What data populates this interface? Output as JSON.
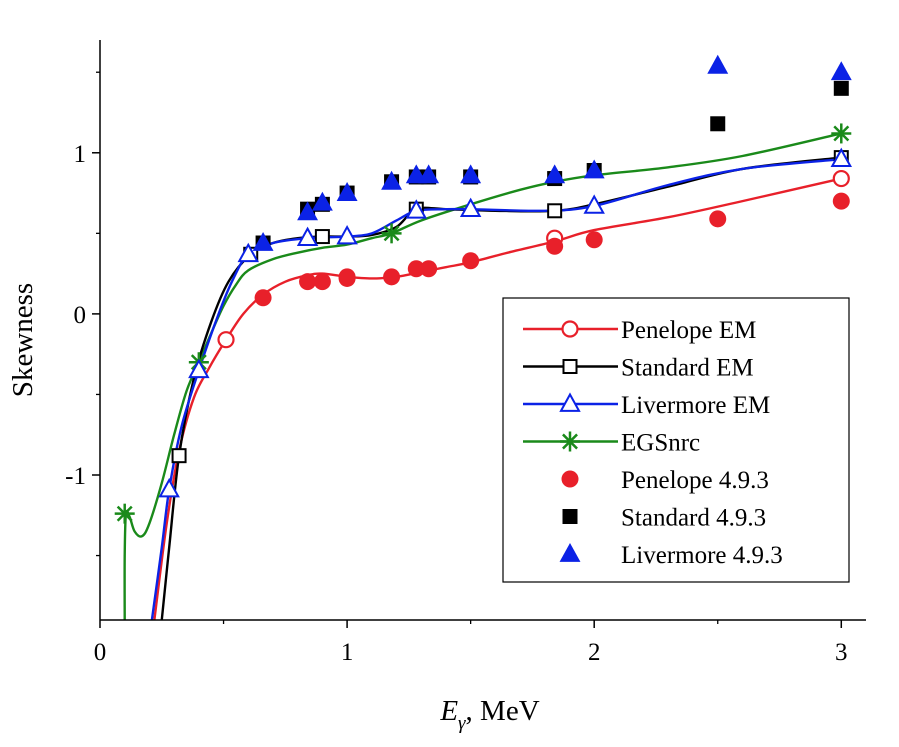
{
  "chart_data": {
    "type": "scatter",
    "title": "",
    "xlabel_main": "E",
    "xlabel_sub": "γ",
    "xlabel_unit": ", MeV",
    "ylabel": "Skewness",
    "xlim": [
      0,
      3.1
    ],
    "ylim": [
      -1.9,
      1.7
    ],
    "x_ticks": [
      0,
      1,
      2,
      3
    ],
    "x_tick_labels": [
      "0",
      "1",
      "2",
      "3"
    ],
    "y_ticks": [
      -1,
      0,
      1
    ],
    "y_tick_labels": [
      "-1",
      "0",
      "1"
    ],
    "grid": false,
    "legend_position": "bottom-right",
    "colors": {
      "red": "#e8202a",
      "black": "#000000",
      "blue": "#0b22e6",
      "green": "#1a8a1a"
    },
    "series": [
      {
        "name": "Penelope EM",
        "style": "line-open-circle",
        "color": "red",
        "points": [
          [
            0.51,
            -0.16
          ],
          [
            1.84,
            0.47
          ],
          [
            3.0,
            0.84
          ]
        ],
        "curve": [
          [
            0.22,
            -1.9
          ],
          [
            0.27,
            -1.3
          ],
          [
            0.32,
            -0.85
          ],
          [
            0.38,
            -0.52
          ],
          [
            0.44,
            -0.34
          ],
          [
            0.51,
            -0.16
          ],
          [
            0.58,
            0.0
          ],
          [
            0.66,
            0.12
          ],
          [
            0.75,
            0.2
          ],
          [
            0.84,
            0.24
          ],
          [
            0.9,
            0.25
          ],
          [
            1.0,
            0.23
          ],
          [
            1.1,
            0.22
          ],
          [
            1.2,
            0.23
          ],
          [
            1.3,
            0.26
          ],
          [
            1.4,
            0.29
          ],
          [
            1.5,
            0.32
          ],
          [
            1.65,
            0.38
          ],
          [
            1.84,
            0.45
          ],
          [
            2.0,
            0.52
          ],
          [
            2.3,
            0.6
          ],
          [
            2.6,
            0.7
          ],
          [
            3.0,
            0.84
          ]
        ]
      },
      {
        "name": "Standard EM",
        "style": "line-open-square",
        "color": "black",
        "points": [
          [
            0.32,
            -0.88
          ],
          [
            0.61,
            0.37
          ],
          [
            0.9,
            0.48
          ],
          [
            1.28,
            0.65
          ],
          [
            1.84,
            0.64
          ],
          [
            3.0,
            0.97
          ]
        ],
        "curve": [
          [
            0.25,
            -1.9
          ],
          [
            0.28,
            -1.45
          ],
          [
            0.32,
            -0.88
          ],
          [
            0.38,
            -0.4
          ],
          [
            0.45,
            -0.05
          ],
          [
            0.52,
            0.2
          ],
          [
            0.61,
            0.37
          ],
          [
            0.7,
            0.44
          ],
          [
            0.8,
            0.47
          ],
          [
            0.9,
            0.48
          ],
          [
            1.0,
            0.48
          ],
          [
            1.1,
            0.49
          ],
          [
            1.2,
            0.54
          ],
          [
            1.28,
            0.65
          ],
          [
            1.4,
            0.65
          ],
          [
            1.6,
            0.64
          ],
          [
            1.84,
            0.64
          ],
          [
            2.0,
            0.68
          ],
          [
            2.3,
            0.79
          ],
          [
            2.6,
            0.9
          ],
          [
            3.0,
            0.97
          ]
        ]
      },
      {
        "name": "Livermore EM",
        "style": "line-open-triangle",
        "color": "blue",
        "points": [
          [
            0.28,
            -1.09
          ],
          [
            0.4,
            -0.35
          ],
          [
            0.6,
            0.37
          ],
          [
            0.84,
            0.47
          ],
          [
            1.0,
            0.48
          ],
          [
            1.28,
            0.64
          ],
          [
            1.5,
            0.65
          ],
          [
            2.0,
            0.67
          ],
          [
            3.0,
            0.96
          ]
        ],
        "curve": [
          [
            0.21,
            -1.9
          ],
          [
            0.25,
            -1.45
          ],
          [
            0.28,
            -1.09
          ],
          [
            0.33,
            -0.7
          ],
          [
            0.4,
            -0.35
          ],
          [
            0.48,
            0.0
          ],
          [
            0.54,
            0.22
          ],
          [
            0.6,
            0.37
          ],
          [
            0.7,
            0.44
          ],
          [
            0.84,
            0.47
          ],
          [
            1.0,
            0.48
          ],
          [
            1.1,
            0.5
          ],
          [
            1.2,
            0.58
          ],
          [
            1.28,
            0.64
          ],
          [
            1.4,
            0.65
          ],
          [
            1.5,
            0.65
          ],
          [
            1.8,
            0.64
          ],
          [
            2.0,
            0.67
          ],
          [
            2.3,
            0.8
          ],
          [
            2.6,
            0.9
          ],
          [
            3.0,
            0.96
          ]
        ]
      },
      {
        "name": "EGSnrc",
        "style": "line-star",
        "color": "green",
        "points": [
          [
            0.1,
            -1.24
          ],
          [
            0.4,
            -0.3
          ],
          [
            1.18,
            0.5
          ],
          [
            3.0,
            1.12
          ]
        ],
        "curve": [
          [
            0.1,
            -1.9
          ],
          [
            0.1,
            -1.5
          ],
          [
            0.105,
            -1.24
          ],
          [
            0.12,
            -1.26
          ],
          [
            0.14,
            -1.35
          ],
          [
            0.17,
            -1.38
          ],
          [
            0.2,
            -1.3
          ],
          [
            0.25,
            -1.05
          ],
          [
            0.3,
            -0.75
          ],
          [
            0.35,
            -0.48
          ],
          [
            0.4,
            -0.3
          ],
          [
            0.45,
            -0.12
          ],
          [
            0.5,
            0.05
          ],
          [
            0.55,
            0.18
          ],
          [
            0.6,
            0.27
          ],
          [
            0.7,
            0.34
          ],
          [
            0.8,
            0.38
          ],
          [
            0.9,
            0.41
          ],
          [
            1.0,
            0.43
          ],
          [
            1.1,
            0.47
          ],
          [
            1.18,
            0.5
          ],
          [
            1.3,
            0.58
          ],
          [
            1.5,
            0.68
          ],
          [
            1.7,
            0.77
          ],
          [
            1.84,
            0.82
          ],
          [
            2.0,
            0.86
          ],
          [
            2.3,
            0.91
          ],
          [
            2.6,
            0.98
          ],
          [
            3.0,
            1.12
          ]
        ]
      },
      {
        "name": "Penelope 4.9.3",
        "style": "filled-circle",
        "color": "red",
        "points": [
          [
            0.66,
            0.1
          ],
          [
            0.84,
            0.2
          ],
          [
            0.9,
            0.2
          ],
          [
            1.0,
            0.22
          ],
          [
            1.0,
            0.23
          ],
          [
            1.18,
            0.23
          ],
          [
            1.28,
            0.28
          ],
          [
            1.33,
            0.28
          ],
          [
            1.5,
            0.33
          ],
          [
            1.84,
            0.42
          ],
          [
            2.0,
            0.46
          ],
          [
            2.5,
            0.59
          ],
          [
            3.0,
            0.7
          ]
        ]
      },
      {
        "name": "Standard 4.9.3",
        "style": "filled-square",
        "color": "black",
        "points": [
          [
            0.66,
            0.44
          ],
          [
            0.84,
            0.65
          ],
          [
            0.9,
            0.68
          ],
          [
            1.0,
            0.75
          ],
          [
            1.18,
            0.82
          ],
          [
            1.28,
            0.85
          ],
          [
            1.33,
            0.85
          ],
          [
            1.5,
            0.85
          ],
          [
            1.84,
            0.84
          ],
          [
            2.0,
            0.89
          ],
          [
            2.5,
            1.18
          ],
          [
            3.0,
            1.4
          ]
        ]
      },
      {
        "name": "Livermore 4.9.3",
        "style": "filled-triangle",
        "color": "blue",
        "points": [
          [
            0.66,
            0.44
          ],
          [
            0.84,
            0.63
          ],
          [
            0.9,
            0.69
          ],
          [
            1.0,
            0.75
          ],
          [
            1.18,
            0.82
          ],
          [
            1.28,
            0.86
          ],
          [
            1.33,
            0.86
          ],
          [
            1.5,
            0.86
          ],
          [
            1.84,
            0.86
          ],
          [
            2.0,
            0.89
          ],
          [
            2.5,
            1.54
          ],
          [
            3.0,
            1.5
          ]
        ]
      }
    ]
  }
}
